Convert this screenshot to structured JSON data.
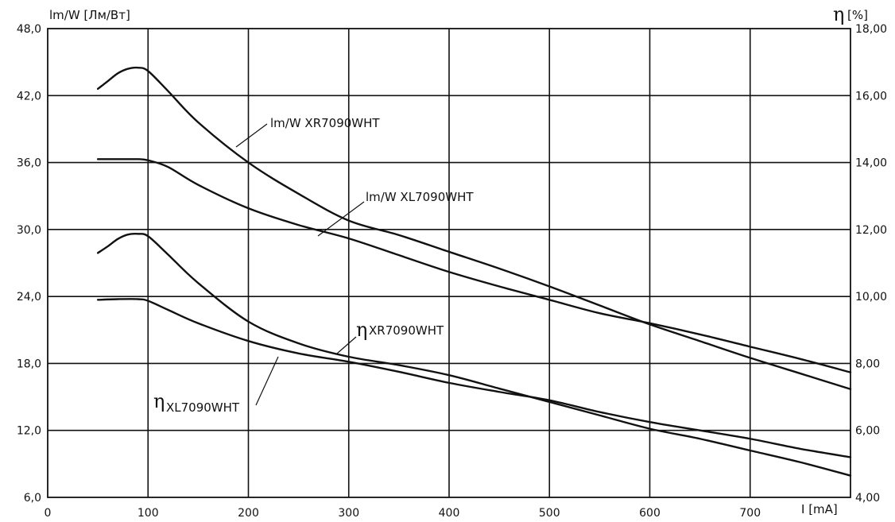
{
  "chart_data": {
    "type": "line",
    "x_axis": {
      "label": "I [mA]",
      "lim": [
        0,
        800
      ],
      "ticks": [
        "0",
        "100",
        "200",
        "300",
        "400",
        "500",
        "600",
        "700"
      ]
    },
    "y_axis_left": {
      "label": "lm/W [Лм/Вт]",
      "lim": [
        6.0,
        48.0
      ],
      "ticks": [
        "6,0",
        "12,0",
        "18,0",
        "24,0",
        "30,0",
        "36,0",
        "42,0",
        "48,0"
      ]
    },
    "y_axis_right": {
      "label_symbol": "η",
      "label_unit": "[%]",
      "lim": [
        4.0,
        18.0
      ],
      "ticks": [
        "4,00",
        "6,00",
        "8,00",
        "10,00",
        "12,00",
        "14,00",
        "16,00",
        "18,00"
      ]
    },
    "grid": true,
    "series": [
      {
        "name": "lm/W XR7090WHT",
        "axis": "left",
        "x": [
          50,
          60,
          70,
          80,
          90,
          100,
          120,
          150,
          200,
          250,
          300,
          350,
          400,
          450,
          500,
          550,
          600,
          650,
          700,
          750,
          800
        ],
        "y": [
          42.6,
          43.3,
          44.0,
          44.4,
          44.5,
          44.2,
          42.4,
          39.6,
          36.0,
          33.2,
          30.8,
          29.5,
          28.0,
          26.5,
          24.9,
          23.2,
          21.5,
          20.0,
          18.5,
          17.1,
          15.7
        ]
      },
      {
        "name": "lm/W XL7090WHT",
        "axis": "left",
        "x": [
          50,
          70,
          90,
          100,
          120,
          150,
          200,
          250,
          300,
          350,
          400,
          450,
          500,
          550,
          600,
          650,
          700,
          750,
          800
        ],
        "y": [
          36.3,
          36.3,
          36.3,
          36.2,
          35.6,
          34.0,
          31.9,
          30.4,
          29.2,
          27.7,
          26.2,
          24.9,
          23.7,
          22.5,
          21.6,
          20.6,
          19.5,
          18.4,
          17.2
        ]
      },
      {
        "name": "ηXR7090WHT",
        "axis": "right",
        "x": [
          50,
          60,
          70,
          80,
          90,
          100,
          120,
          150,
          200,
          250,
          300,
          350,
          400,
          450,
          500,
          550,
          600,
          650,
          700,
          750,
          800
        ],
        "y": [
          11.3,
          11.5,
          11.72,
          11.85,
          11.87,
          11.8,
          11.25,
          10.4,
          9.25,
          8.6,
          8.2,
          7.95,
          7.65,
          7.25,
          6.85,
          6.45,
          6.05,
          5.75,
          5.4,
          5.05,
          4.65
        ]
      },
      {
        "name": "ηXL7090WHT",
        "axis": "right",
        "x": [
          50,
          70,
          90,
          100,
          120,
          150,
          200,
          250,
          300,
          350,
          400,
          450,
          500,
          550,
          600,
          650,
          700,
          750,
          800
        ],
        "y": [
          9.9,
          9.92,
          9.92,
          9.87,
          9.6,
          9.2,
          8.67,
          8.3,
          8.05,
          7.75,
          7.42,
          7.15,
          6.9,
          6.55,
          6.25,
          6.0,
          5.75,
          5.45,
          5.2
        ]
      }
    ],
    "annotations": [
      {
        "series": "lm/W XR7090WHT",
        "text": "lm/W  XR7090WHT"
      },
      {
        "series": "lm/W XL7090WHT",
        "text": "lm/W  XL7090WHT"
      },
      {
        "series": "ηXR7090WHT",
        "symbol": "η",
        "text": "XR7090WHT"
      },
      {
        "series": "ηXL7090WHT",
        "symbol": "η",
        "text": "XL7090WHT"
      }
    ]
  }
}
